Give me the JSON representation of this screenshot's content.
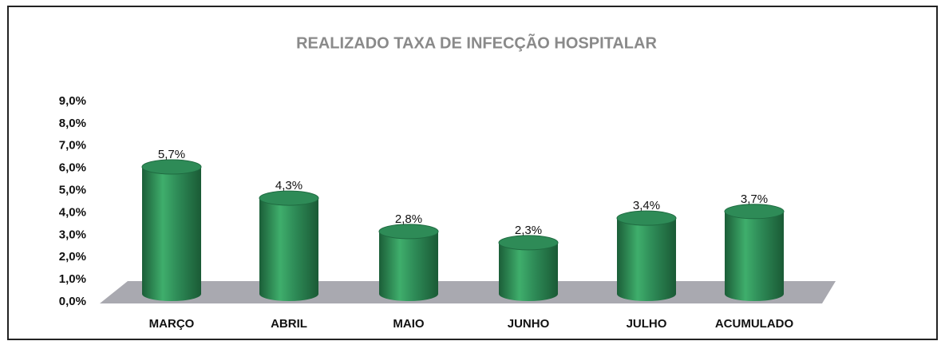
{
  "chart_data": {
    "type": "bar3d",
    "title": "REALIZADO TAXA DE INFECÇÃO HOSPITALAR",
    "categories": [
      "MARÇO",
      "ABRIL",
      "MAIO",
      "JUNHO",
      "JULHO",
      "ACUMULADO"
    ],
    "values": [
      5.7,
      4.3,
      2.8,
      2.3,
      3.4,
      3.7
    ],
    "value_labels": [
      "5,7%",
      "4,3%",
      "2,8%",
      "2,3%",
      "3,4%",
      "3,7%"
    ],
    "color": "#2e8b57",
    "ylim": [
      0,
      9
    ],
    "yticks": [
      {
        "value": 0,
        "label": "0,0%"
      },
      {
        "value": 1,
        "label": "1,0%"
      },
      {
        "value": 2,
        "label": "2,0%"
      },
      {
        "value": 3,
        "label": "3,0%"
      },
      {
        "value": 4,
        "label": "4,0%"
      },
      {
        "value": 5,
        "label": "5,0%"
      },
      {
        "value": 6,
        "label": "6,0%"
      },
      {
        "value": 7,
        "label": "7,0%"
      },
      {
        "value": 8,
        "label": "8,0%"
      },
      {
        "value": 9,
        "label": "9,0%"
      }
    ]
  }
}
